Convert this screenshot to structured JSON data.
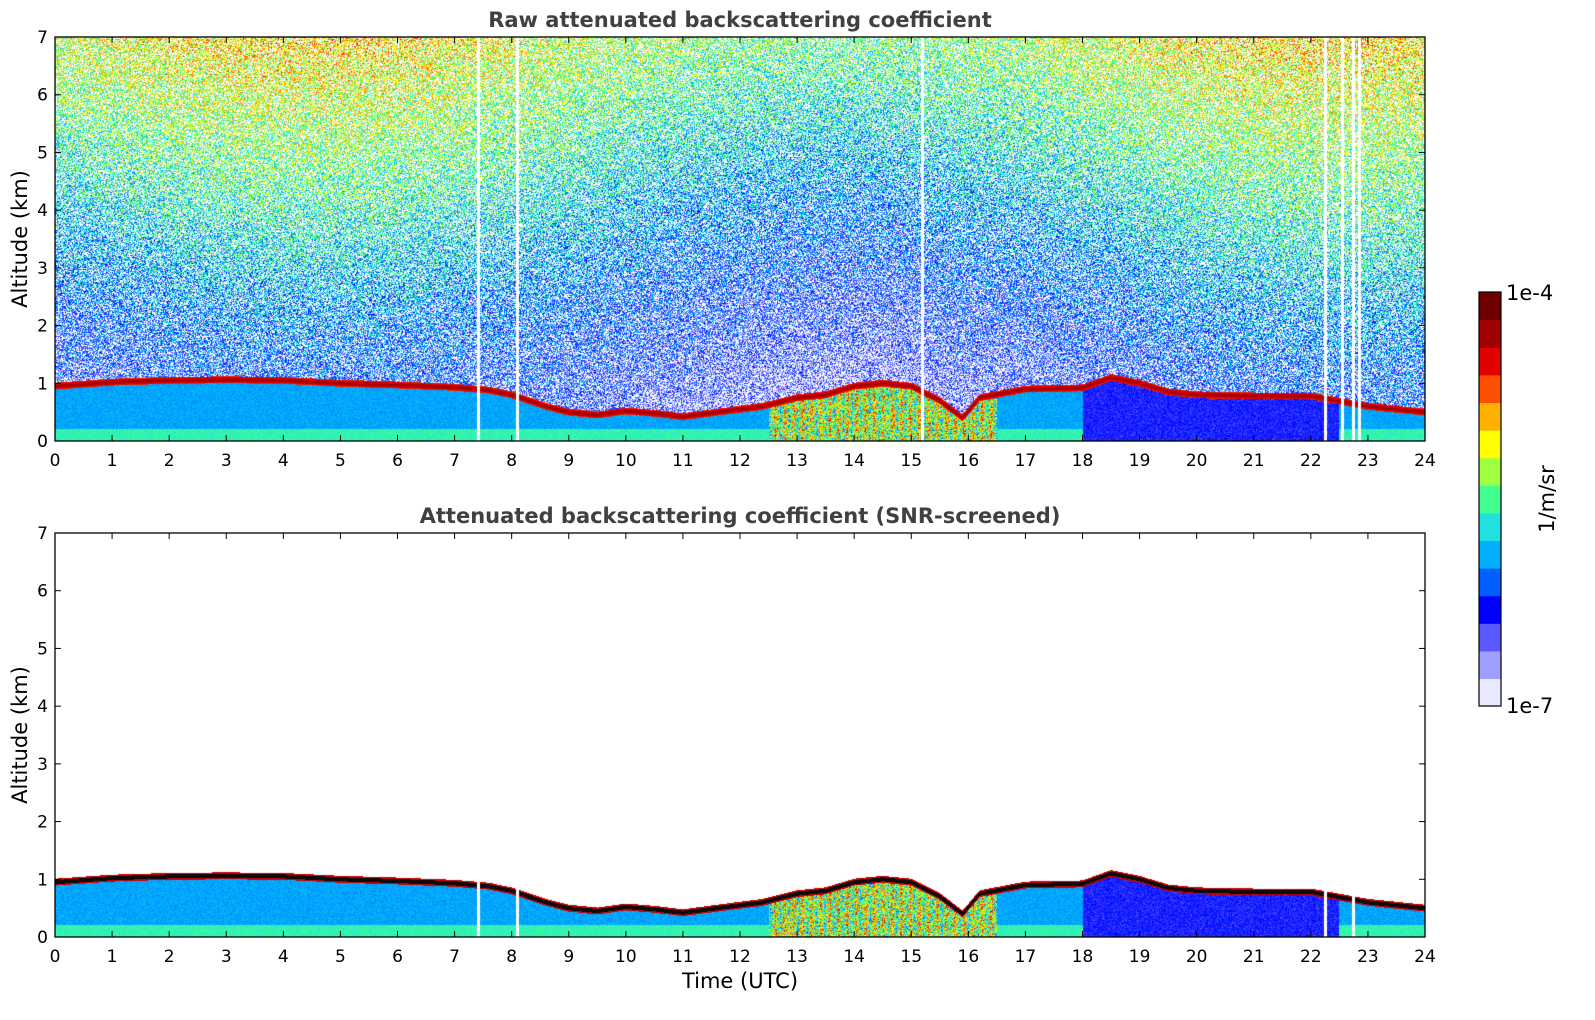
{
  "chart_data": [
    {
      "type": "heatmap",
      "title": "Raw attenuated backscattering coefficient",
      "xlabel": "",
      "ylabel": "Altitude (km)",
      "xlim": [
        0,
        24
      ],
      "ylim": [
        0,
        7
      ],
      "xticks": [
        0,
        1,
        2,
        3,
        4,
        5,
        6,
        7,
        8,
        9,
        10,
        11,
        12,
        13,
        14,
        15,
        16,
        17,
        18,
        19,
        20,
        21,
        22,
        23,
        24
      ],
      "yticks": [
        0,
        1,
        2,
        3,
        4,
        5,
        6,
        7
      ],
      "noise": "high",
      "layer_top_km": [
        [
          0,
          0.95
        ],
        [
          1,
          1.02
        ],
        [
          2,
          1.05
        ],
        [
          3,
          1.06
        ],
        [
          4,
          1.05
        ],
        [
          5,
          1.0
        ],
        [
          6,
          0.97
        ],
        [
          7,
          0.93
        ],
        [
          7.6,
          0.88
        ],
        [
          8,
          0.8
        ],
        [
          8.6,
          0.6
        ],
        [
          9,
          0.5
        ],
        [
          9.5,
          0.45
        ],
        [
          10,
          0.52
        ],
        [
          10.5,
          0.48
        ],
        [
          11,
          0.42
        ],
        [
          11.6,
          0.5
        ],
        [
          12.4,
          0.6
        ],
        [
          13,
          0.75
        ],
        [
          13.5,
          0.8
        ],
        [
          14,
          0.95
        ],
        [
          14.5,
          1.0
        ],
        [
          15,
          0.95
        ],
        [
          15.5,
          0.7
        ],
        [
          15.9,
          0.4
        ],
        [
          16.2,
          0.75
        ],
        [
          17,
          0.9
        ],
        [
          18,
          0.92
        ],
        [
          18.5,
          1.1
        ],
        [
          19,
          1.0
        ],
        [
          19.5,
          0.85
        ],
        [
          20,
          0.8
        ],
        [
          21,
          0.78
        ],
        [
          22,
          0.78
        ],
        [
          23,
          0.6
        ],
        [
          24,
          0.5
        ]
      ],
      "data_gaps_utc": [
        7.42,
        8.1,
        15.2,
        22.25,
        22.55,
        22.75,
        22.85
      ]
    },
    {
      "type": "heatmap",
      "title": "Attenuated backscattering coefficient (SNR-screened)",
      "xlabel": "Time (UTC)",
      "ylabel": "Altitude (km)",
      "xlim": [
        0,
        24
      ],
      "ylim": [
        0,
        7
      ],
      "xticks": [
        0,
        1,
        2,
        3,
        4,
        5,
        6,
        7,
        8,
        9,
        10,
        11,
        12,
        13,
        14,
        15,
        16,
        17,
        18,
        19,
        20,
        21,
        22,
        23,
        24
      ],
      "yticks": [
        0,
        1,
        2,
        3,
        4,
        5,
        6,
        7
      ],
      "noise": "screened",
      "layer_top_km": [
        [
          0,
          0.95
        ],
        [
          1,
          1.02
        ],
        [
          2,
          1.05
        ],
        [
          3,
          1.06
        ],
        [
          4,
          1.05
        ],
        [
          5,
          1.0
        ],
        [
          6,
          0.97
        ],
        [
          7,
          0.93
        ],
        [
          7.6,
          0.88
        ],
        [
          8,
          0.8
        ],
        [
          8.6,
          0.6
        ],
        [
          9,
          0.5
        ],
        [
          9.5,
          0.45
        ],
        [
          10,
          0.52
        ],
        [
          10.5,
          0.48
        ],
        [
          11,
          0.42
        ],
        [
          11.6,
          0.5
        ],
        [
          12.4,
          0.6
        ],
        [
          13,
          0.75
        ],
        [
          13.5,
          0.8
        ],
        [
          14,
          0.95
        ],
        [
          14.5,
          1.0
        ],
        [
          15,
          0.95
        ],
        [
          15.5,
          0.7
        ],
        [
          15.9,
          0.4
        ],
        [
          16.2,
          0.75
        ],
        [
          17,
          0.9
        ],
        [
          18,
          0.92
        ],
        [
          18.5,
          1.1
        ],
        [
          19,
          1.0
        ],
        [
          19.5,
          0.85
        ],
        [
          20,
          0.8
        ],
        [
          21,
          0.78
        ],
        [
          22,
          0.78
        ],
        [
          23,
          0.6
        ],
        [
          24,
          0.5
        ]
      ],
      "data_gaps_utc": [
        7.42,
        8.1,
        22.25,
        22.75
      ]
    }
  ],
  "colorbar": {
    "label": "1/m/sr",
    "min_label": "1e-7",
    "max_label": "1e-4",
    "scale": "log",
    "colormap": [
      "#e8e8ff",
      "#9f9fff",
      "#5a5aff",
      "#0000ff",
      "#0060ff",
      "#00b0ff",
      "#20e0e0",
      "#40ff90",
      "#a0ff40",
      "#ffff00",
      "#ffb000",
      "#ff5000",
      "#e00000",
      "#a00000",
      "#700000"
    ]
  }
}
